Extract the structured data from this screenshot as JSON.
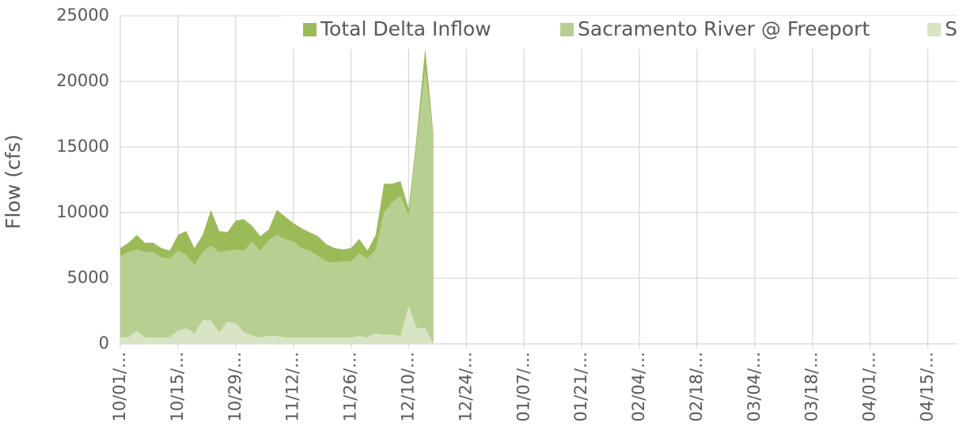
{
  "chart_data": {
    "type": "area",
    "y_label": "Flow (cfs)",
    "categories": [
      "10/01/…",
      null,
      null,
      null,
      null,
      null,
      null,
      "10/15/…",
      null,
      null,
      null,
      null,
      null,
      null,
      "10/29/…",
      null,
      null,
      null,
      null,
      null,
      null,
      "11/12/…",
      null,
      null,
      null,
      null,
      null,
      null,
      "11/26/…",
      null,
      null,
      null,
      null,
      null,
      null,
      "12/10/…",
      null,
      null,
      null,
      null,
      null,
      null,
      "12/24/…",
      null,
      null,
      null,
      null,
      null,
      null,
      "01/07/…",
      null,
      null,
      null,
      null,
      null,
      null,
      "01/21/…",
      null,
      null,
      null,
      null,
      null,
      null,
      "02/04/…",
      null,
      null,
      null,
      null,
      null,
      null,
      "02/18/…",
      null,
      null,
      null,
      null,
      null,
      null,
      "03/04/…",
      null,
      null,
      null,
      null,
      null,
      null,
      "03/18/…",
      null,
      null,
      null,
      null,
      null,
      null,
      "04/01/…",
      null,
      null,
      null,
      null,
      null,
      null,
      "04/15/…",
      null,
      null,
      null
    ],
    "series": [
      {
        "name": "Total Delta Inflow",
        "color": "#9bbb59",
        "values": [
          7300,
          7700,
          8300,
          7700,
          7700,
          7300,
          7100,
          8300,
          8600,
          7300,
          8300,
          10200,
          8600,
          8500,
          9400,
          9500,
          9000,
          8200,
          8700,
          10200,
          9700,
          9200,
          8800,
          8500,
          8200,
          7600,
          7300,
          7200,
          7300,
          8000,
          7100,
          8300,
          12200,
          12200,
          12400,
          10300,
          16000,
          22500,
          16000,
          null,
          null,
          null,
          null,
          null,
          null,
          null,
          null,
          null,
          null,
          null,
          null,
          null,
          null,
          null,
          null,
          null,
          null,
          null,
          null,
          null,
          null,
          null,
          null,
          null,
          null,
          null,
          null,
          null,
          null,
          null,
          null,
          null,
          null,
          null,
          null,
          null,
          null,
          null,
          null,
          null,
          null,
          null,
          null,
          null,
          null,
          null,
          null,
          null,
          null,
          null,
          null,
          null,
          null,
          null,
          null,
          null,
          null,
          null,
          null,
          null,
          null,
          null
        ]
      },
      {
        "name": "Sacramento River @ Freeport",
        "color": "#b7d091",
        "values": [
          6700,
          7000,
          7200,
          7000,
          7000,
          6600,
          6500,
          7100,
          6800,
          6000,
          7000,
          7500,
          7000,
          7100,
          7200,
          7100,
          7800,
          7100,
          7900,
          8300,
          8000,
          7800,
          7300,
          7100,
          6700,
          6300,
          6200,
          6300,
          6300,
          6900,
          6500,
          7200,
          10000,
          10800,
          11300,
          9800,
          15500,
          21000,
          15800,
          null,
          null,
          null,
          null,
          null,
          null,
          null,
          null,
          null,
          null,
          null,
          null,
          null,
          null,
          null,
          null,
          null,
          null,
          null,
          null,
          null,
          null,
          null,
          null,
          null,
          null,
          null,
          null,
          null,
          null,
          null,
          null,
          null,
          null,
          null,
          null,
          null,
          null,
          null,
          null,
          null,
          null,
          null,
          null,
          null,
          null,
          null,
          null,
          null,
          null,
          null,
          null,
          null,
          null,
          null,
          null,
          null,
          null,
          null,
          null,
          null,
          null,
          null
        ]
      },
      {
        "name": "S",
        "color": "#d8e4c3",
        "values": [
          500,
          500,
          1000,
          500,
          500,
          500,
          500,
          1000,
          1200,
          800,
          1800,
          1800,
          900,
          1700,
          1600,
          900,
          600,
          500,
          600,
          600,
          500,
          500,
          500,
          500,
          500,
          500,
          500,
          500,
          500,
          600,
          500,
          800,
          700,
          700,
          600,
          2900,
          1200,
          1200,
          0,
          null,
          null,
          null,
          null,
          null,
          null,
          null,
          null,
          null,
          null,
          null,
          null,
          null,
          null,
          null,
          null,
          null,
          null,
          null,
          null,
          null,
          null,
          null,
          null,
          null,
          null,
          null,
          null,
          null,
          null,
          null,
          null,
          null,
          null,
          null,
          null,
          null,
          null,
          null,
          null,
          null,
          null,
          null,
          null,
          null,
          null,
          null,
          null,
          null,
          null,
          null,
          null,
          null,
          null,
          null,
          null,
          null,
          null,
          null,
          null,
          null,
          null,
          null
        ]
      }
    ],
    "ylim": [
      0,
      25000
    ],
    "yticks": [
      0,
      5000,
      10000,
      15000,
      20000,
      25000
    ],
    "grid": true,
    "legend": "top"
  }
}
